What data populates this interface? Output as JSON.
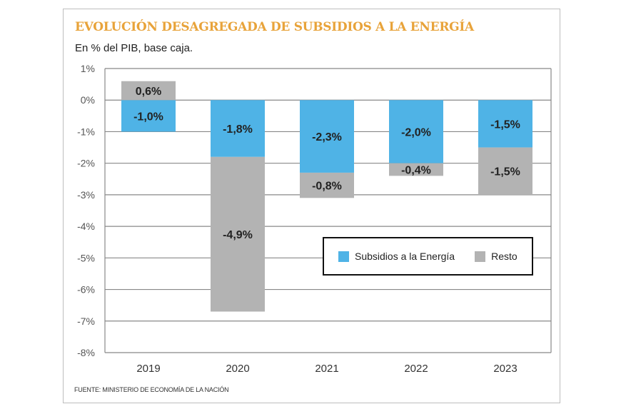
{
  "chart_data": {
    "type": "bar",
    "stacked": true,
    "title": "EVOLUCIÓN DESAGREGADA DE  SUBSIDIOS A LA ENERGÍA",
    "subtitle": "En % del PIB, base caja.",
    "source": "FUENTE: MINISTERIO DE ECONOMÍA DE LA NACIÓN",
    "categories": [
      "2019",
      "2020",
      "2021",
      "2022",
      "2023"
    ],
    "series": [
      {
        "name": "Subsidios a la Energía",
        "color": "#4fb3e6",
        "values": [
          -1.0,
          -1.8,
          -2.3,
          -2.0,
          -1.5
        ],
        "labels": [
          "-1,0%",
          "-1,8%",
          "-2,3%",
          "-2,0%",
          "-1,5%"
        ]
      },
      {
        "name": "Resto",
        "color": "#b3b3b3",
        "values": [
          0.6,
          -4.9,
          -0.8,
          -0.4,
          -1.5
        ],
        "labels": [
          "0,6%",
          "-4,9%",
          "-0,8%",
          "-0,4%",
          "-1,5%"
        ]
      }
    ],
    "ylim": [
      -8,
      1
    ],
    "yticks": [
      1,
      0,
      -1,
      -2,
      -3,
      -4,
      -5,
      -6,
      -7,
      -8
    ],
    "ytick_labels": [
      "1%",
      "0%",
      "-1%",
      "-2%",
      "-3%",
      "-4%",
      "-5%",
      "-6%",
      "-7%",
      "-8%"
    ],
    "grid": true,
    "legend": "inside-right"
  }
}
